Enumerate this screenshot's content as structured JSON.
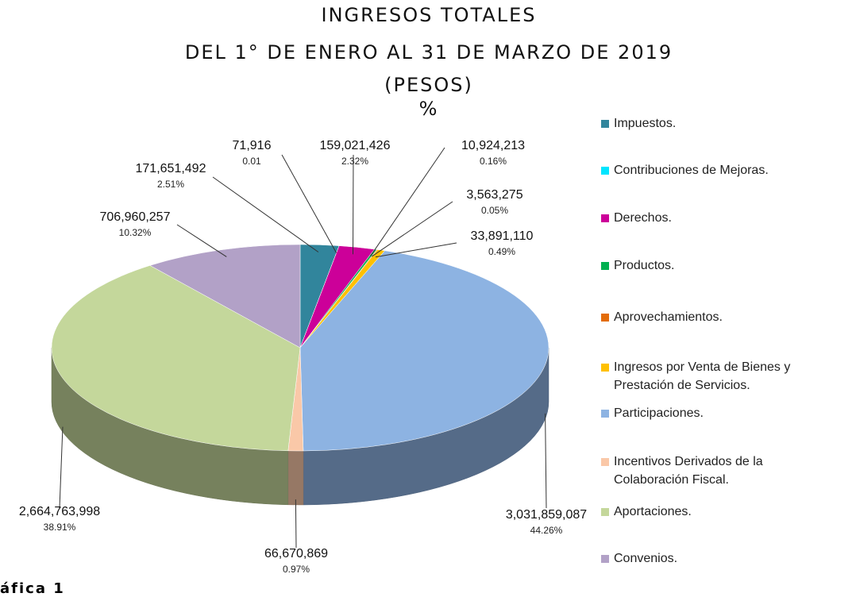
{
  "chart_data": {
    "type": "pie3d",
    "title": "INGRESOS TOTALES",
    "subtitle": "DEL 1° DE ENERO AL 31 DE MARZO DE 2019",
    "unit": "(PESOS)",
    "value_axis_label": "%",
    "caption": "áfica 1",
    "categories": [
      "Impuestos.",
      "Contribuciones de Mejoras.",
      "Derechos.",
      "Productos.",
      "Aprovechamientos.",
      "Ingresos por Venta de Bienes y Prestación de Servicios.",
      "Participaciones.",
      "Incentivos Derivados de la Colaboración Fiscal.",
      "Aportaciones.",
      "Convenios."
    ],
    "values": [
      171651492,
      71916,
      159021426,
      10924213,
      3563275,
      33891110,
      3031859087,
      66670869,
      2664763998,
      706960257
    ],
    "value_labels": [
      "171,651,492",
      "71,916",
      "159,021,426",
      "10,924,213",
      "3,563,275",
      "33,891,110",
      "3,031,859,087",
      "66,670,869",
      "2,664,763,998",
      "706,960,257"
    ],
    "percentage_labels": [
      "2.51%",
      "0.01",
      "2.32%",
      "0.16%",
      "0.05%",
      "0.49%",
      "44.26%",
      "0.97%",
      "38.91%",
      "10.32%"
    ],
    "colors": [
      "#31859c",
      "#00e5ff",
      "#cc0099",
      "#00b050",
      "#e36c09",
      "#ffc000",
      "#8db3e2",
      "#fac8a8",
      "#c4d79b",
      "#b2a1c7"
    ]
  }
}
